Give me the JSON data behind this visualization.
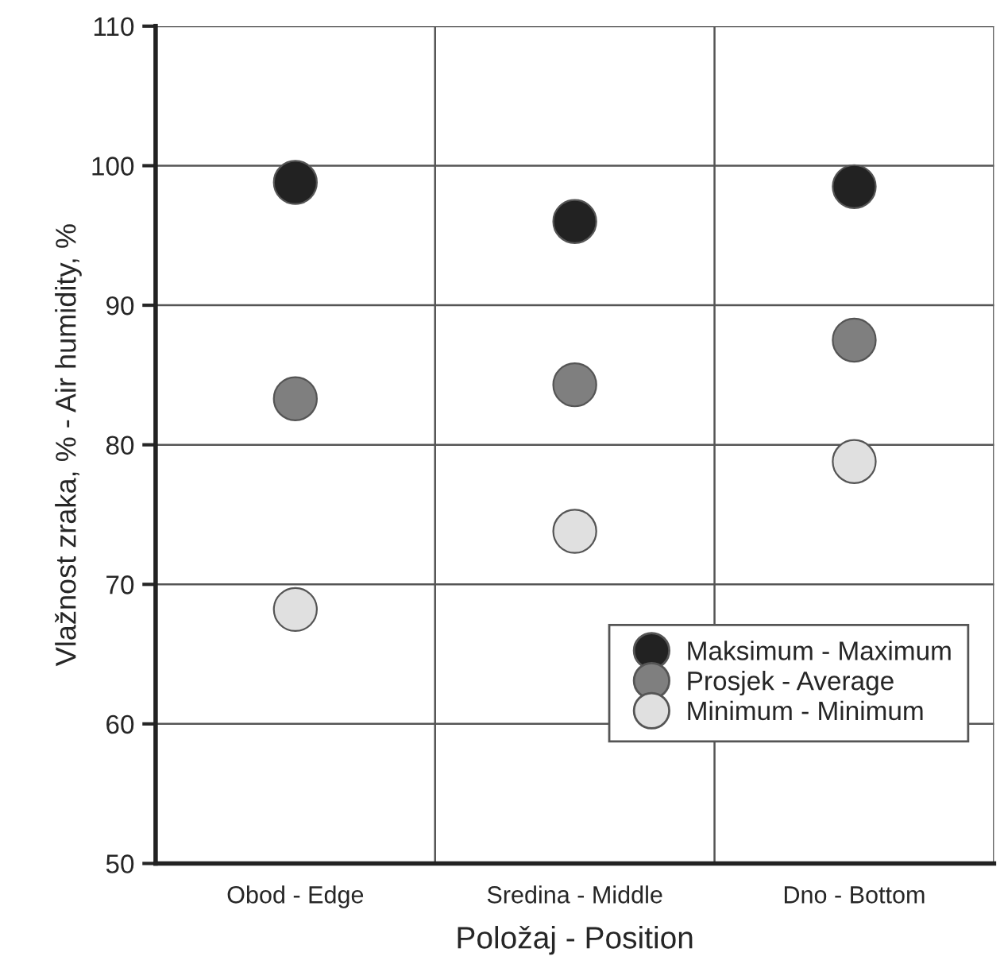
{
  "chart_data": {
    "type": "scatter",
    "xlabel": "Položaj - Position",
    "ylabel": "Vlažnost zraka, % - Air humidity, %",
    "categories": [
      "Obod - Edge",
      "Sredina - Middle",
      "Dno - Bottom"
    ],
    "series": [
      {
        "name": "Maksimum - Maximum",
        "color": "#222222",
        "values": [
          98.8,
          96.0,
          98.5
        ]
      },
      {
        "name": "Prosjek - Average",
        "color": "#7f7f7f",
        "values": [
          83.3,
          84.3,
          87.5
        ]
      },
      {
        "name": "Minimum - Minimum",
        "color": "#e0e0e0",
        "values": [
          68.2,
          73.8,
          78.8
        ]
      }
    ],
    "ylim": [
      50,
      110
    ],
    "yticks": [
      50,
      60,
      70,
      80,
      90,
      100,
      110
    ],
    "grid": true,
    "legend": "bottom right",
    "marker": "circle"
  }
}
